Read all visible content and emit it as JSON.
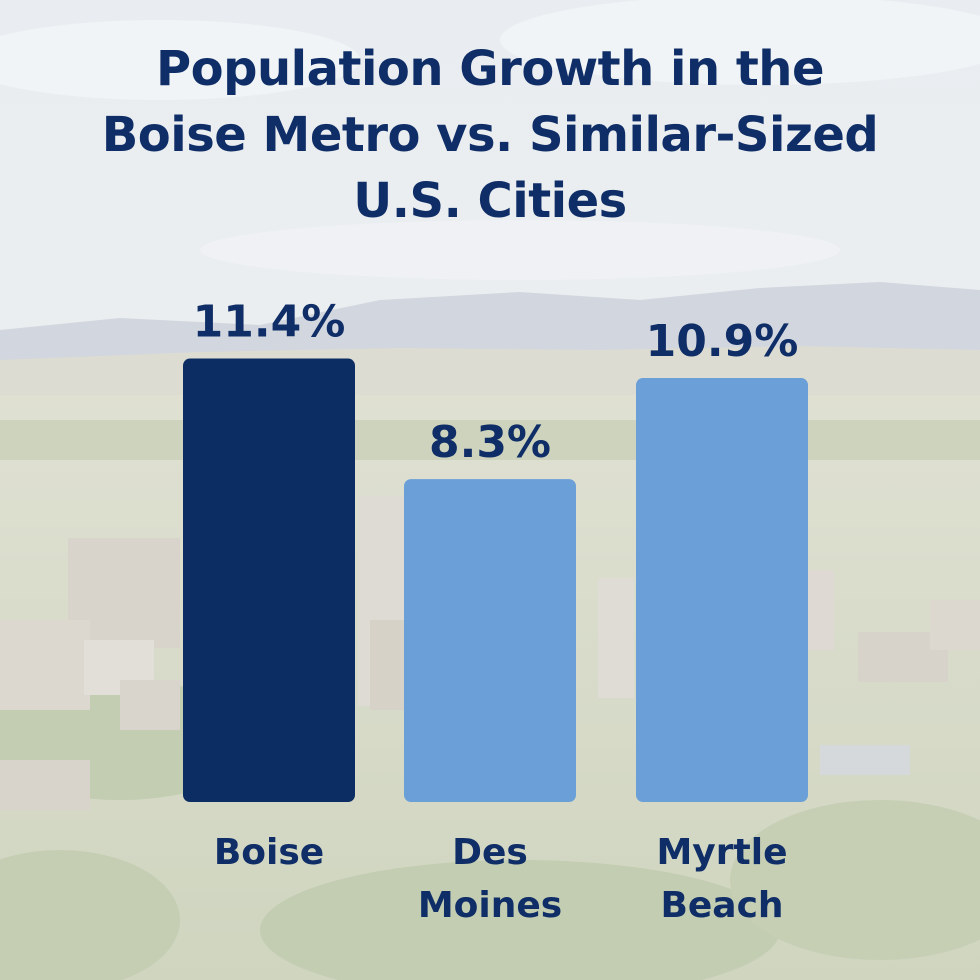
{
  "title": "Population Growth in the\nBoise Metro vs. Similar-Sized\nU.S. Cities",
  "chart_data": {
    "type": "bar",
    "title": "Population Growth in the Boise Metro vs. Similar-Sized U.S. Cities",
    "categories": [
      "Boise",
      "Des Moines",
      "Myrtle Beach"
    ],
    "category_lines": [
      [
        "Boise"
      ],
      [
        "Des",
        "Moines"
      ],
      [
        "Myrtle",
        "Beach"
      ]
    ],
    "values": [
      11.4,
      8.3,
      10.9
    ],
    "value_labels": [
      "11.4%",
      "8.3%",
      "10.9%"
    ],
    "bar_colors": [
      "#0b2d63",
      "#6a9fd8",
      "#6a9fd8"
    ],
    "label_color": "#0f2d66",
    "xlabel": "",
    "ylabel": "",
    "grid": false
  }
}
